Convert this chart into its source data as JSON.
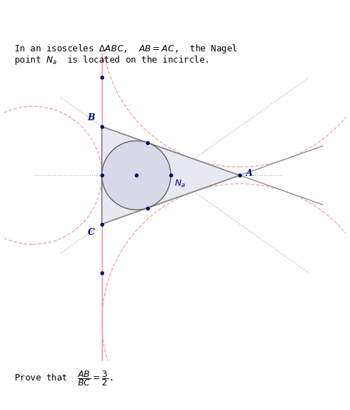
{
  "BC": 2.0,
  "AB": 3.0,
  "colors": {
    "triangle_fill": "#e8e8f2",
    "triangle_edge": "#808080",
    "incircle_fill": "#d8d8e8",
    "incircle_edge": "#606060",
    "excircle": "#f0aaaa",
    "axis_line": "#e08888",
    "cevian_dotted": "#aaaaaa",
    "solid_ext": "#909090",
    "point_color": "#00008b",
    "label_color": "#00008b"
  },
  "background": "#ffffff",
  "fig_text_top1": "In an isosceles $\\Delta ABC$,  $AB = AC$,  the Nagel",
  "fig_text_top2": "point $N_a$  is located on the incircle.",
  "fig_text_bot": "Prove that  $\\dfrac{AB}{BC} = \\dfrac{3}{2}$."
}
